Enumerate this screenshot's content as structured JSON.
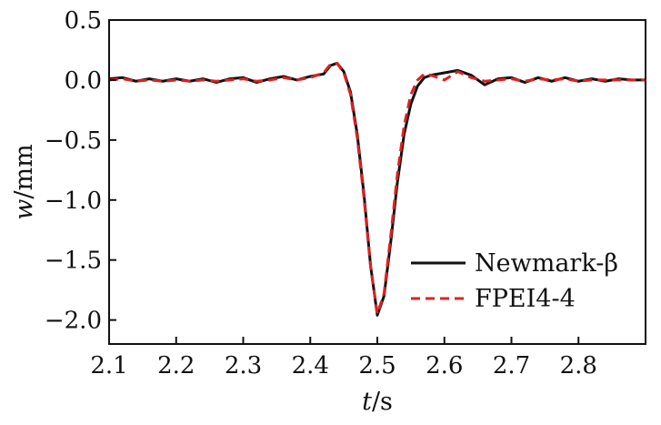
{
  "chart_data": {
    "type": "line",
    "title": "",
    "xlabel_italic": "t",
    "xlabel_unit": "/s",
    "ylabel_italic": "w",
    "ylabel_unit": "/mm",
    "xlim": [
      2.1,
      2.9
    ],
    "ylim": [
      -2.2,
      0.5
    ],
    "xticks": [
      2.1,
      2.2,
      2.3,
      2.4,
      2.5,
      2.6,
      2.7,
      2.8
    ],
    "xtick_labels": [
      "2.1",
      "2.2",
      "2.3",
      "2.4",
      "2.5",
      "2.6",
      "2.7",
      "2.8"
    ],
    "yticks": [
      0.5,
      0.0,
      -0.5,
      -1.0,
      -1.5,
      -2.0
    ],
    "ytick_labels": [
      "0.5",
      "0.0",
      "−0.5",
      "−1.0",
      "−1.5",
      "−2.0"
    ],
    "grid": false,
    "legend_position": "bottom-right",
    "series": [
      {
        "name": "Newmark-β",
        "color": "#111111",
        "dash": "solid",
        "x": [
          2.1,
          2.12,
          2.14,
          2.16,
          2.18,
          2.2,
          2.22,
          2.24,
          2.26,
          2.28,
          2.3,
          2.32,
          2.34,
          2.36,
          2.38,
          2.4,
          2.42,
          2.43,
          2.44,
          2.45,
          2.46,
          2.47,
          2.48,
          2.49,
          2.5,
          2.51,
          2.52,
          2.53,
          2.54,
          2.55,
          2.56,
          2.57,
          2.58,
          2.6,
          2.62,
          2.64,
          2.66,
          2.68,
          2.7,
          2.72,
          2.74,
          2.76,
          2.78,
          2.8,
          2.82,
          2.84,
          2.86,
          2.88,
          2.9
        ],
        "y": [
          0.01,
          0.02,
          -0.01,
          0.01,
          -0.01,
          0.01,
          -0.01,
          0.01,
          -0.02,
          0.01,
          0.02,
          -0.02,
          0.01,
          0.03,
          0.0,
          0.03,
          0.05,
          0.12,
          0.14,
          0.07,
          -0.1,
          -0.45,
          -0.95,
          -1.55,
          -1.96,
          -1.8,
          -1.35,
          -0.85,
          -0.45,
          -0.2,
          -0.05,
          0.02,
          0.04,
          0.06,
          0.08,
          0.04,
          -0.04,
          0.01,
          0.02,
          -0.02,
          0.02,
          -0.01,
          0.02,
          -0.01,
          0.01,
          -0.01,
          0.01,
          0.0,
          0.0
        ]
      },
      {
        "name": "FPEI4-4",
        "color": "#e02020",
        "dash": "dashed",
        "x": [
          2.1,
          2.12,
          2.14,
          2.16,
          2.18,
          2.2,
          2.22,
          2.24,
          2.26,
          2.28,
          2.3,
          2.32,
          2.34,
          2.36,
          2.38,
          2.4,
          2.42,
          2.43,
          2.44,
          2.45,
          2.46,
          2.47,
          2.48,
          2.49,
          2.5,
          2.51,
          2.52,
          2.53,
          2.54,
          2.55,
          2.56,
          2.57,
          2.58,
          2.6,
          2.62,
          2.64,
          2.66,
          2.68,
          2.7,
          2.72,
          2.74,
          2.76,
          2.78,
          2.8,
          2.82,
          2.84,
          2.86,
          2.88,
          2.9
        ],
        "y": [
          0.0,
          0.01,
          -0.01,
          0.0,
          -0.01,
          0.0,
          -0.01,
          0.0,
          -0.01,
          0.0,
          0.01,
          -0.01,
          0.0,
          0.02,
          0.0,
          0.02,
          0.06,
          0.13,
          0.14,
          0.06,
          -0.12,
          -0.48,
          -0.98,
          -1.56,
          -1.95,
          -1.78,
          -1.3,
          -0.78,
          -0.38,
          -0.12,
          0.0,
          0.05,
          0.04,
          0.0,
          0.07,
          0.02,
          -0.01,
          0.0,
          0.01,
          -0.01,
          0.01,
          0.0,
          0.01,
          -0.01,
          0.0,
          0.0,
          0.0,
          0.0,
          0.0
        ]
      }
    ]
  }
}
